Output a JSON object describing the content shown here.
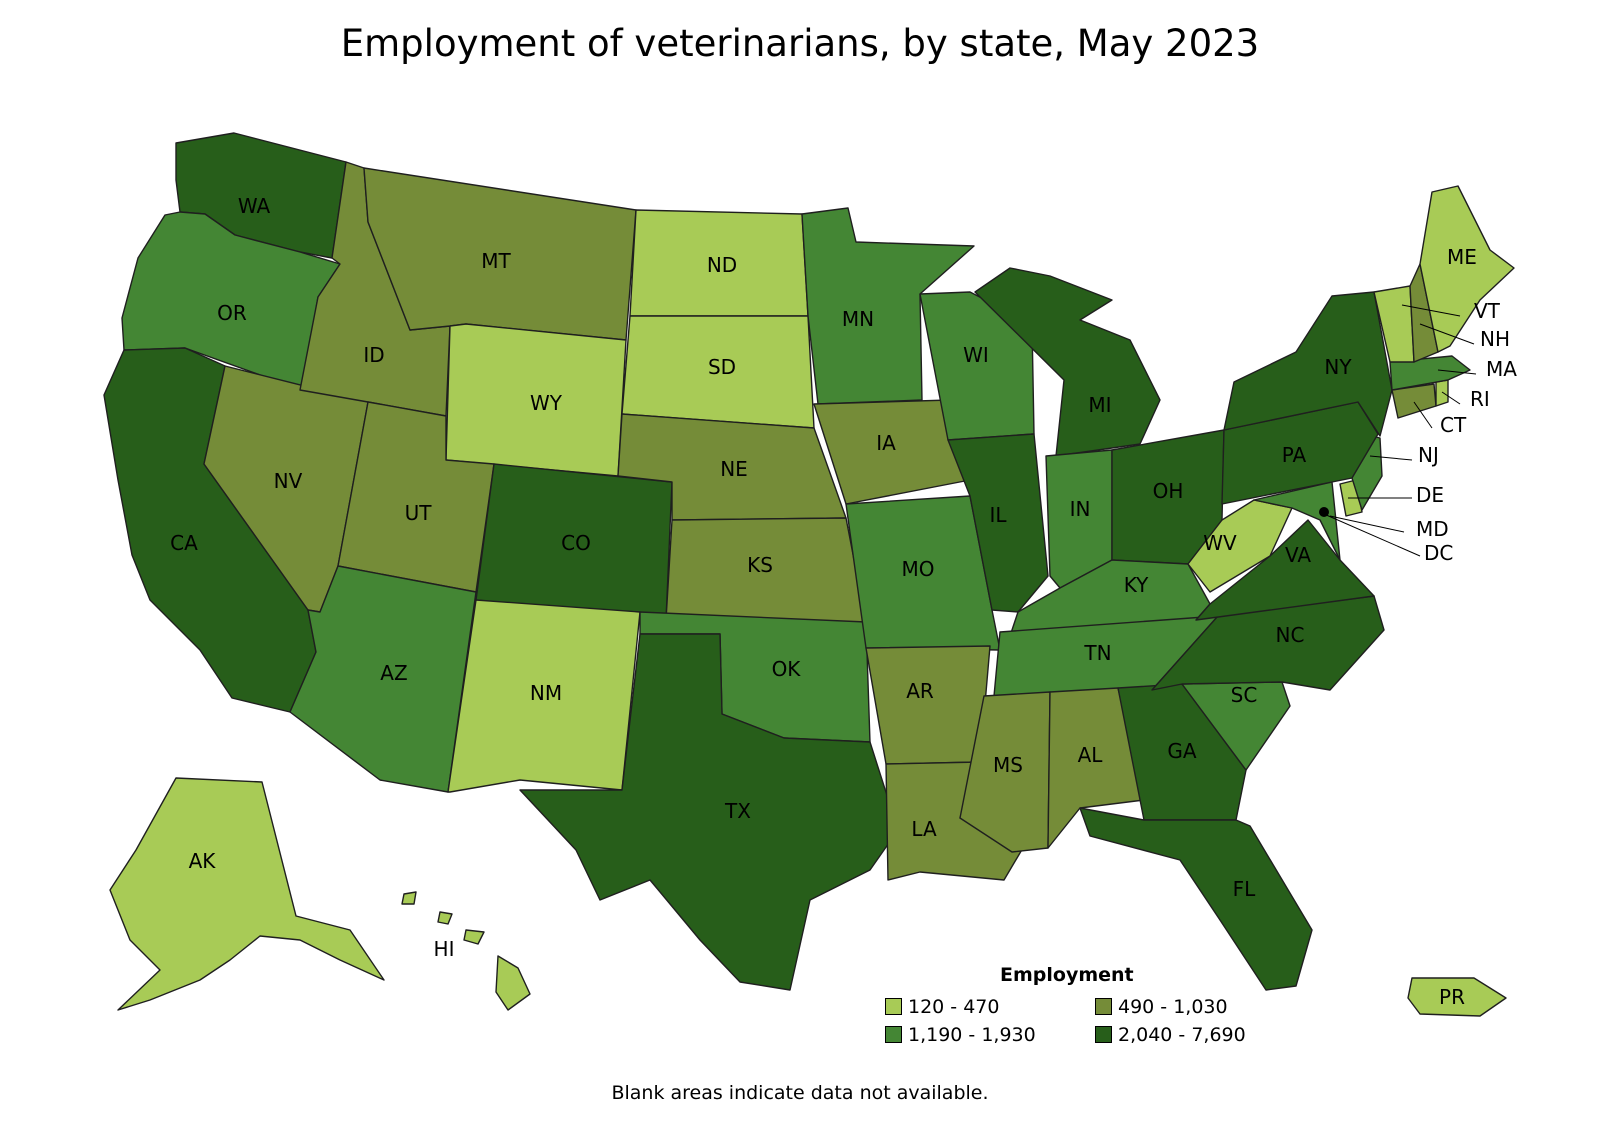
{
  "title": "Employment of veterinarians, by state, May 2023",
  "legend": {
    "title": "Employment",
    "items": [
      {
        "label": "120 - 470",
        "color": "#a8cb56"
      },
      {
        "label": "490 - 1,030",
        "color": "#758c38"
      },
      {
        "label": "1,190 - 1,930",
        "color": "#448634"
      },
      {
        "label": "2,040 - 7,690",
        "color": "#275e1a"
      }
    ]
  },
  "footnote": "Blank areas indicate data not available.",
  "map_data": {
    "type": "choropleth",
    "states": [
      {
        "abbr": "WA",
        "class": 3
      },
      {
        "abbr": "OR",
        "class": 2
      },
      {
        "abbr": "CA",
        "class": 3
      },
      {
        "abbr": "NV",
        "class": 1
      },
      {
        "abbr": "ID",
        "class": 1
      },
      {
        "abbr": "MT",
        "class": 1
      },
      {
        "abbr": "WY",
        "class": 0
      },
      {
        "abbr": "UT",
        "class": 1
      },
      {
        "abbr": "AZ",
        "class": 2
      },
      {
        "abbr": "CO",
        "class": 3
      },
      {
        "abbr": "NM",
        "class": 0
      },
      {
        "abbr": "ND",
        "class": 0
      },
      {
        "abbr": "SD",
        "class": 0
      },
      {
        "abbr": "NE",
        "class": 1
      },
      {
        "abbr": "KS",
        "class": 1
      },
      {
        "abbr": "OK",
        "class": 2
      },
      {
        "abbr": "TX",
        "class": 3
      },
      {
        "abbr": "MN",
        "class": 2
      },
      {
        "abbr": "IA",
        "class": 1
      },
      {
        "abbr": "MO",
        "class": 2
      },
      {
        "abbr": "AR",
        "class": 1
      },
      {
        "abbr": "LA",
        "class": 1
      },
      {
        "abbr": "WI",
        "class": 2
      },
      {
        "abbr": "IL",
        "class": 3
      },
      {
        "abbr": "MI",
        "class": 3
      },
      {
        "abbr": "IN",
        "class": 2
      },
      {
        "abbr": "OH",
        "class": 3
      },
      {
        "abbr": "KY",
        "class": 2
      },
      {
        "abbr": "TN",
        "class": 2
      },
      {
        "abbr": "MS",
        "class": 1
      },
      {
        "abbr": "AL",
        "class": 1
      },
      {
        "abbr": "GA",
        "class": 3
      },
      {
        "abbr": "FL",
        "class": 3
      },
      {
        "abbr": "SC",
        "class": 2
      },
      {
        "abbr": "NC",
        "class": 3
      },
      {
        "abbr": "VA",
        "class": 3
      },
      {
        "abbr": "WV",
        "class": 0
      },
      {
        "abbr": "MD",
        "class": 2
      },
      {
        "abbr": "DE",
        "class": 0
      },
      {
        "abbr": "DC",
        "class": 0
      },
      {
        "abbr": "NJ",
        "class": 2
      },
      {
        "abbr": "PA",
        "class": 3
      },
      {
        "abbr": "NY",
        "class": 3
      },
      {
        "abbr": "CT",
        "class": 1
      },
      {
        "abbr": "RI",
        "class": 0
      },
      {
        "abbr": "MA",
        "class": 2
      },
      {
        "abbr": "VT",
        "class": 0
      },
      {
        "abbr": "NH",
        "class": 1
      },
      {
        "abbr": "ME",
        "class": 0
      },
      {
        "abbr": "AK",
        "class": 0
      },
      {
        "abbr": "HI",
        "class": 0
      },
      {
        "abbr": "PR",
        "class": 0
      }
    ]
  }
}
